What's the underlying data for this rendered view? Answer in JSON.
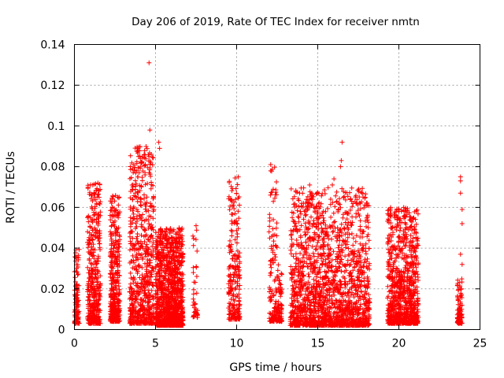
{
  "chart_data": {
    "type": "scatter",
    "title": "Day 206 of 2019, Rate Of TEC Index for receiver nmtn",
    "xlabel": "GPS time / hours",
    "ylabel": "ROTI / TECUs",
    "xlim": [
      0,
      25
    ],
    "ylim": [
      0,
      0.14
    ],
    "xticks": [
      0,
      5,
      10,
      15,
      20,
      25
    ],
    "xtick_labels": [
      "0",
      "5",
      "10",
      "15",
      "20",
      "25"
    ],
    "yticks": [
      0,
      0.02,
      0.04,
      0.06,
      0.08,
      0.1,
      0.12,
      0.14
    ],
    "ytick_labels": [
      "0",
      "0.02",
      "0.04",
      "0.06",
      "0.08",
      "0.1",
      "0.12",
      "0.14"
    ],
    "grid": true,
    "marker": "+",
    "color": "#ff0000",
    "clusters": [
      {
        "x_start": 0.0,
        "x_end": 0.3,
        "y_min": 0.003,
        "y_max": 0.041,
        "density": 120
      },
      {
        "x_start": 0.8,
        "x_end": 1.6,
        "y_min": 0.003,
        "y_max": 0.072,
        "density": 420
      },
      {
        "x_start": 2.2,
        "x_end": 2.8,
        "y_min": 0.004,
        "y_max": 0.066,
        "density": 380
      },
      {
        "x_start": 3.4,
        "x_end": 4.9,
        "y_min": 0.003,
        "y_max": 0.09,
        "density": 650
      },
      {
        "x_start": 5.0,
        "x_end": 6.7,
        "y_min": 0.002,
        "y_max": 0.05,
        "density": 1200
      },
      {
        "x_start": 7.3,
        "x_end": 7.6,
        "y_min": 0.006,
        "y_max": 0.05,
        "density": 40
      },
      {
        "x_start": 9.5,
        "x_end": 10.2,
        "y_min": 0.005,
        "y_max": 0.075,
        "density": 220
      },
      {
        "x_start": 12.0,
        "x_end": 12.5,
        "y_min": 0.004,
        "y_max": 0.08,
        "density": 120
      },
      {
        "x_start": 12.5,
        "x_end": 12.8,
        "y_min": 0.004,
        "y_max": 0.032,
        "density": 80
      },
      {
        "x_start": 13.3,
        "x_end": 18.2,
        "y_min": 0.002,
        "y_max": 0.07,
        "density": 1800
      },
      {
        "x_start": 19.3,
        "x_end": 21.2,
        "y_min": 0.003,
        "y_max": 0.06,
        "density": 900
      },
      {
        "x_start": 23.6,
        "x_end": 23.9,
        "y_min": 0.003,
        "y_max": 0.025,
        "density": 90
      }
    ],
    "outliers": [
      {
        "x": 4.6,
        "y": 0.131
      },
      {
        "x": 4.65,
        "y": 0.098
      },
      {
        "x": 5.2,
        "y": 0.092
      },
      {
        "x": 5.25,
        "y": 0.089
      },
      {
        "x": 3.9,
        "y": 0.089
      },
      {
        "x": 3.95,
        "y": 0.085
      },
      {
        "x": 3.85,
        "y": 0.078
      },
      {
        "x": 16.5,
        "y": 0.092
      },
      {
        "x": 16.45,
        "y": 0.083
      },
      {
        "x": 16.4,
        "y": 0.08
      },
      {
        "x": 12.1,
        "y": 0.081
      },
      {
        "x": 12.1,
        "y": 0.078
      },
      {
        "x": 10.1,
        "y": 0.075
      },
      {
        "x": 14.5,
        "y": 0.071
      },
      {
        "x": 23.8,
        "y": 0.075
      },
      {
        "x": 23.8,
        "y": 0.073
      },
      {
        "x": 23.8,
        "y": 0.067
      },
      {
        "x": 23.9,
        "y": 0.059
      },
      {
        "x": 23.9,
        "y": 0.052
      },
      {
        "x": 23.8,
        "y": 0.037
      },
      {
        "x": 23.9,
        "y": 0.032
      },
      {
        "x": 7.5,
        "y": 0.051
      },
      {
        "x": 9.8,
        "y": 0.061
      },
      {
        "x": 9.9,
        "y": 0.057
      },
      {
        "x": 9.7,
        "y": 0.046
      },
      {
        "x": 12.0,
        "y": 0.048
      },
      {
        "x": 16.0,
        "y": 0.074
      },
      {
        "x": 15.9,
        "y": 0.071
      },
      {
        "x": 20.3,
        "y": 0.06
      },
      {
        "x": 20.0,
        "y": 0.058
      },
      {
        "x": 19.9,
        "y": 0.054
      }
    ]
  }
}
